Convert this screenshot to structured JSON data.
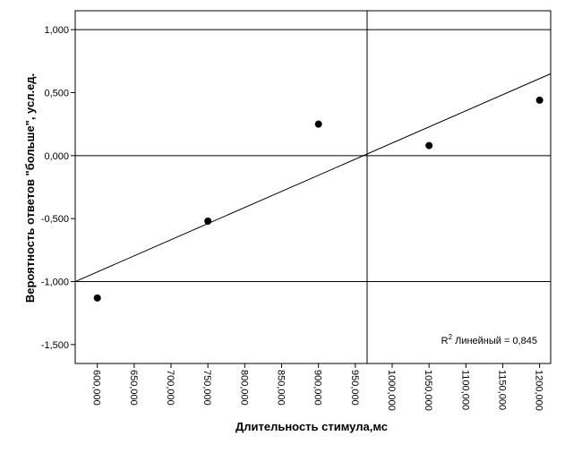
{
  "chart_data": {
    "type": "scatter",
    "xlabel": "Длительность стимула,мс",
    "ylabel": "Вероятность ответов \"больше\", усл.ед.",
    "xlim": [
      570,
      1215
    ],
    "ylim": [
      -1.65,
      1.15
    ],
    "xticks": [
      {
        "value": 600,
        "label": "600,000"
      },
      {
        "value": 650,
        "label": "650,000"
      },
      {
        "value": 700,
        "label": "700,000"
      },
      {
        "value": 750,
        "label": "750,000"
      },
      {
        "value": 800,
        "label": "800,000"
      },
      {
        "value": 850,
        "label": "850,000"
      },
      {
        "value": 900,
        "label": "900,000"
      },
      {
        "value": 950,
        "label": "950,000"
      },
      {
        "value": 1000,
        "label": "1000,000"
      },
      {
        "value": 1050,
        "label": "1050,000"
      },
      {
        "value": 1100,
        "label": "1100,000"
      },
      {
        "value": 1150,
        "label": "1150,000"
      },
      {
        "value": 1200,
        "label": "1200,000"
      }
    ],
    "yticks": [
      {
        "value": 1.0,
        "label": "1,000"
      },
      {
        "value": 0.5,
        "label": "0,500"
      },
      {
        "value": 0.0,
        "label": "0,000"
      },
      {
        "value": -0.5,
        "label": "-0,500"
      },
      {
        "value": -1.0,
        "label": "-1,000"
      },
      {
        "value": -1.5,
        "label": "-1,500"
      }
    ],
    "points": [
      {
        "x": 600,
        "y": -1.13
      },
      {
        "x": 750,
        "y": -0.52
      },
      {
        "x": 900,
        "y": 0.25
      },
      {
        "x": 1050,
        "y": 0.08
      },
      {
        "x": 1200,
        "y": 0.44
      }
    ],
    "fit_line": {
      "x1": 570,
      "y1": -1.0,
      "x2": 1215,
      "y2": 0.65
    },
    "reference_lines": {
      "y": [
        1.0,
        0.0,
        -1.0
      ],
      "x": [
        966
      ]
    },
    "annotation": {
      "base": "R",
      "sup": "2",
      "text": " Линейный = 0,845"
    }
  }
}
